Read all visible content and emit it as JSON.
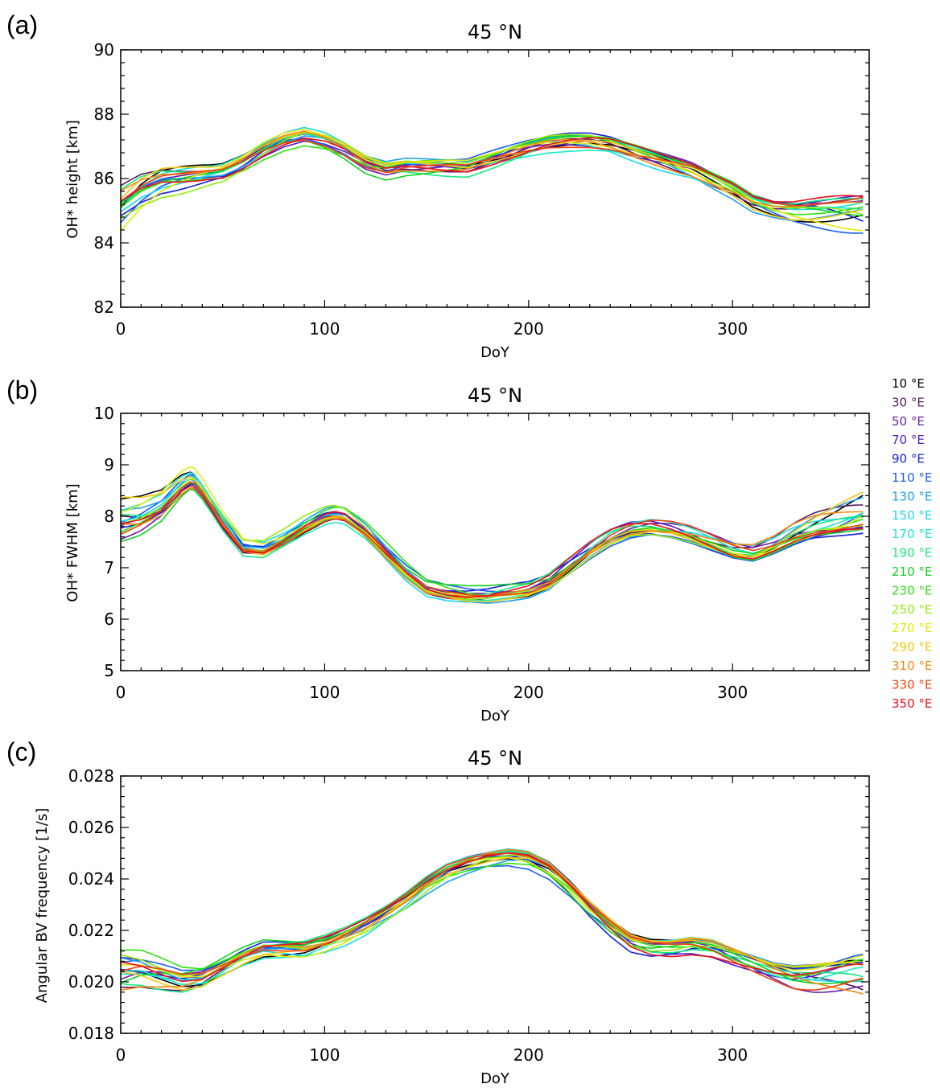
{
  "chart_data": [
    {
      "type": "line",
      "panel_label": "(a)",
      "title": "45 °N",
      "xlabel": "DoY",
      "ylabel": "OH* height [km]",
      "xlim": [
        0,
        367
      ],
      "ylim": [
        82,
        90
      ],
      "x_ticks": [
        0,
        100,
        200,
        300
      ],
      "y_ticks": [
        82,
        84,
        86,
        88,
        90
      ],
      "keys": {
        "x": [
          0,
          10,
          20,
          30,
          40,
          50,
          60,
          70,
          80,
          90,
          100,
          110,
          120,
          130,
          140,
          150,
          160,
          170,
          180,
          190,
          200,
          210,
          220,
          230,
          240,
          250,
          260,
          270,
          280,
          290,
          300,
          310,
          320,
          330,
          340,
          350,
          360,
          365
        ],
        "y": [
          85.1,
          85.6,
          85.9,
          86.0,
          86.1,
          86.2,
          86.5,
          86.9,
          87.2,
          87.35,
          87.2,
          86.9,
          86.5,
          86.3,
          86.4,
          86.4,
          86.4,
          86.4,
          86.6,
          86.8,
          87.0,
          87.15,
          87.2,
          87.2,
          87.1,
          86.9,
          86.7,
          86.5,
          86.3,
          86.0,
          85.7,
          85.3,
          85.1,
          85.0,
          85.0,
          85.0,
          85.0,
          85.0
        ]
      },
      "legend_position": "none"
    },
    {
      "type": "line",
      "panel_label": "(b)",
      "title": "45 °N",
      "xlabel": "DoY",
      "ylabel": "OH* FWHM [km]",
      "xlim": [
        0,
        367
      ],
      "ylim": [
        5,
        10
      ],
      "x_ticks": [
        0,
        100,
        200,
        300
      ],
      "y_ticks": [
        5,
        6,
        7,
        8,
        9,
        10
      ],
      "keys": {
        "x": [
          0,
          10,
          20,
          30,
          35,
          40,
          50,
          60,
          70,
          80,
          90,
          100,
          105,
          110,
          120,
          130,
          140,
          150,
          160,
          170,
          180,
          190,
          200,
          210,
          220,
          230,
          240,
          250,
          260,
          270,
          280,
          290,
          300,
          310,
          320,
          330,
          340,
          350,
          360,
          365
        ],
        "y": [
          7.9,
          8.0,
          8.2,
          8.6,
          8.72,
          8.5,
          7.9,
          7.4,
          7.35,
          7.55,
          7.8,
          8.0,
          8.05,
          8.0,
          7.7,
          7.3,
          6.9,
          6.6,
          6.5,
          6.45,
          6.45,
          6.5,
          6.55,
          6.7,
          7.0,
          7.3,
          7.55,
          7.7,
          7.75,
          7.7,
          7.6,
          7.45,
          7.3,
          7.25,
          7.4,
          7.6,
          7.75,
          7.85,
          7.95,
          8.0
        ]
      },
      "legend_position": "right"
    },
    {
      "type": "line",
      "panel_label": "(c)",
      "title": "45 °N",
      "xlabel": "DoY",
      "ylabel": "Angular BV frequency [1/s]",
      "xlim": [
        0,
        367
      ],
      "ylim": [
        0.018,
        0.028
      ],
      "x_ticks": [
        0,
        100,
        200,
        300
      ],
      "y_ticks": [
        0.018,
        0.02,
        0.022,
        0.024,
        0.026,
        0.028
      ],
      "y_tick_labels": [
        "0.018",
        "0.020",
        "0.022",
        "0.024",
        "0.026",
        "0.028"
      ],
      "keys": {
        "x": [
          0,
          10,
          20,
          30,
          40,
          50,
          60,
          70,
          80,
          90,
          100,
          110,
          120,
          130,
          140,
          150,
          160,
          170,
          180,
          190,
          200,
          210,
          220,
          230,
          240,
          250,
          260,
          270,
          280,
          290,
          300,
          310,
          320,
          330,
          340,
          350,
          360,
          365
        ],
        "y": [
          0.0205,
          0.0205,
          0.0203,
          0.0201,
          0.0202,
          0.0206,
          0.021,
          0.0213,
          0.0213,
          0.0213,
          0.0215,
          0.0218,
          0.0222,
          0.0227,
          0.0232,
          0.0238,
          0.0243,
          0.0246,
          0.0248,
          0.0249,
          0.0248,
          0.0244,
          0.0237,
          0.0229,
          0.0222,
          0.0216,
          0.0214,
          0.0214,
          0.0215,
          0.0214,
          0.0211,
          0.0208,
          0.0205,
          0.0203,
          0.0203,
          0.0204,
          0.0205,
          0.0205
        ]
      },
      "legend_position": "none"
    }
  ],
  "legend": [
    {
      "label": "10 °E",
      "color": "#000000"
    },
    {
      "label": "30 °E",
      "color": "#5a1760"
    },
    {
      "label": "50 °E",
      "color": "#6a1ea8"
    },
    {
      "label": "70 °E",
      "color": "#5218c8"
    },
    {
      "label": "90 °E",
      "color": "#1420dc"
    },
    {
      "label": "110 °E",
      "color": "#1a5cf0"
    },
    {
      "label": "130 °E",
      "color": "#1aa0f0"
    },
    {
      "label": "150 °E",
      "color": "#18d8ee"
    },
    {
      "label": "170 °E",
      "color": "#18e8c8"
    },
    {
      "label": "190 °E",
      "color": "#18e880"
    },
    {
      "label": "210 °E",
      "color": "#10d020"
    },
    {
      "label": "230 °E",
      "color": "#30e010"
    },
    {
      "label": "250 °E",
      "color": "#90ee10"
    },
    {
      "label": "270 °E",
      "color": "#e2ea10"
    },
    {
      "label": "290 °E",
      "color": "#f6c610"
    },
    {
      "label": "310 °E",
      "color": "#f28a10"
    },
    {
      "label": "330 °E",
      "color": "#f04010"
    },
    {
      "label": "350 °E",
      "color": "#e8101c"
    }
  ]
}
